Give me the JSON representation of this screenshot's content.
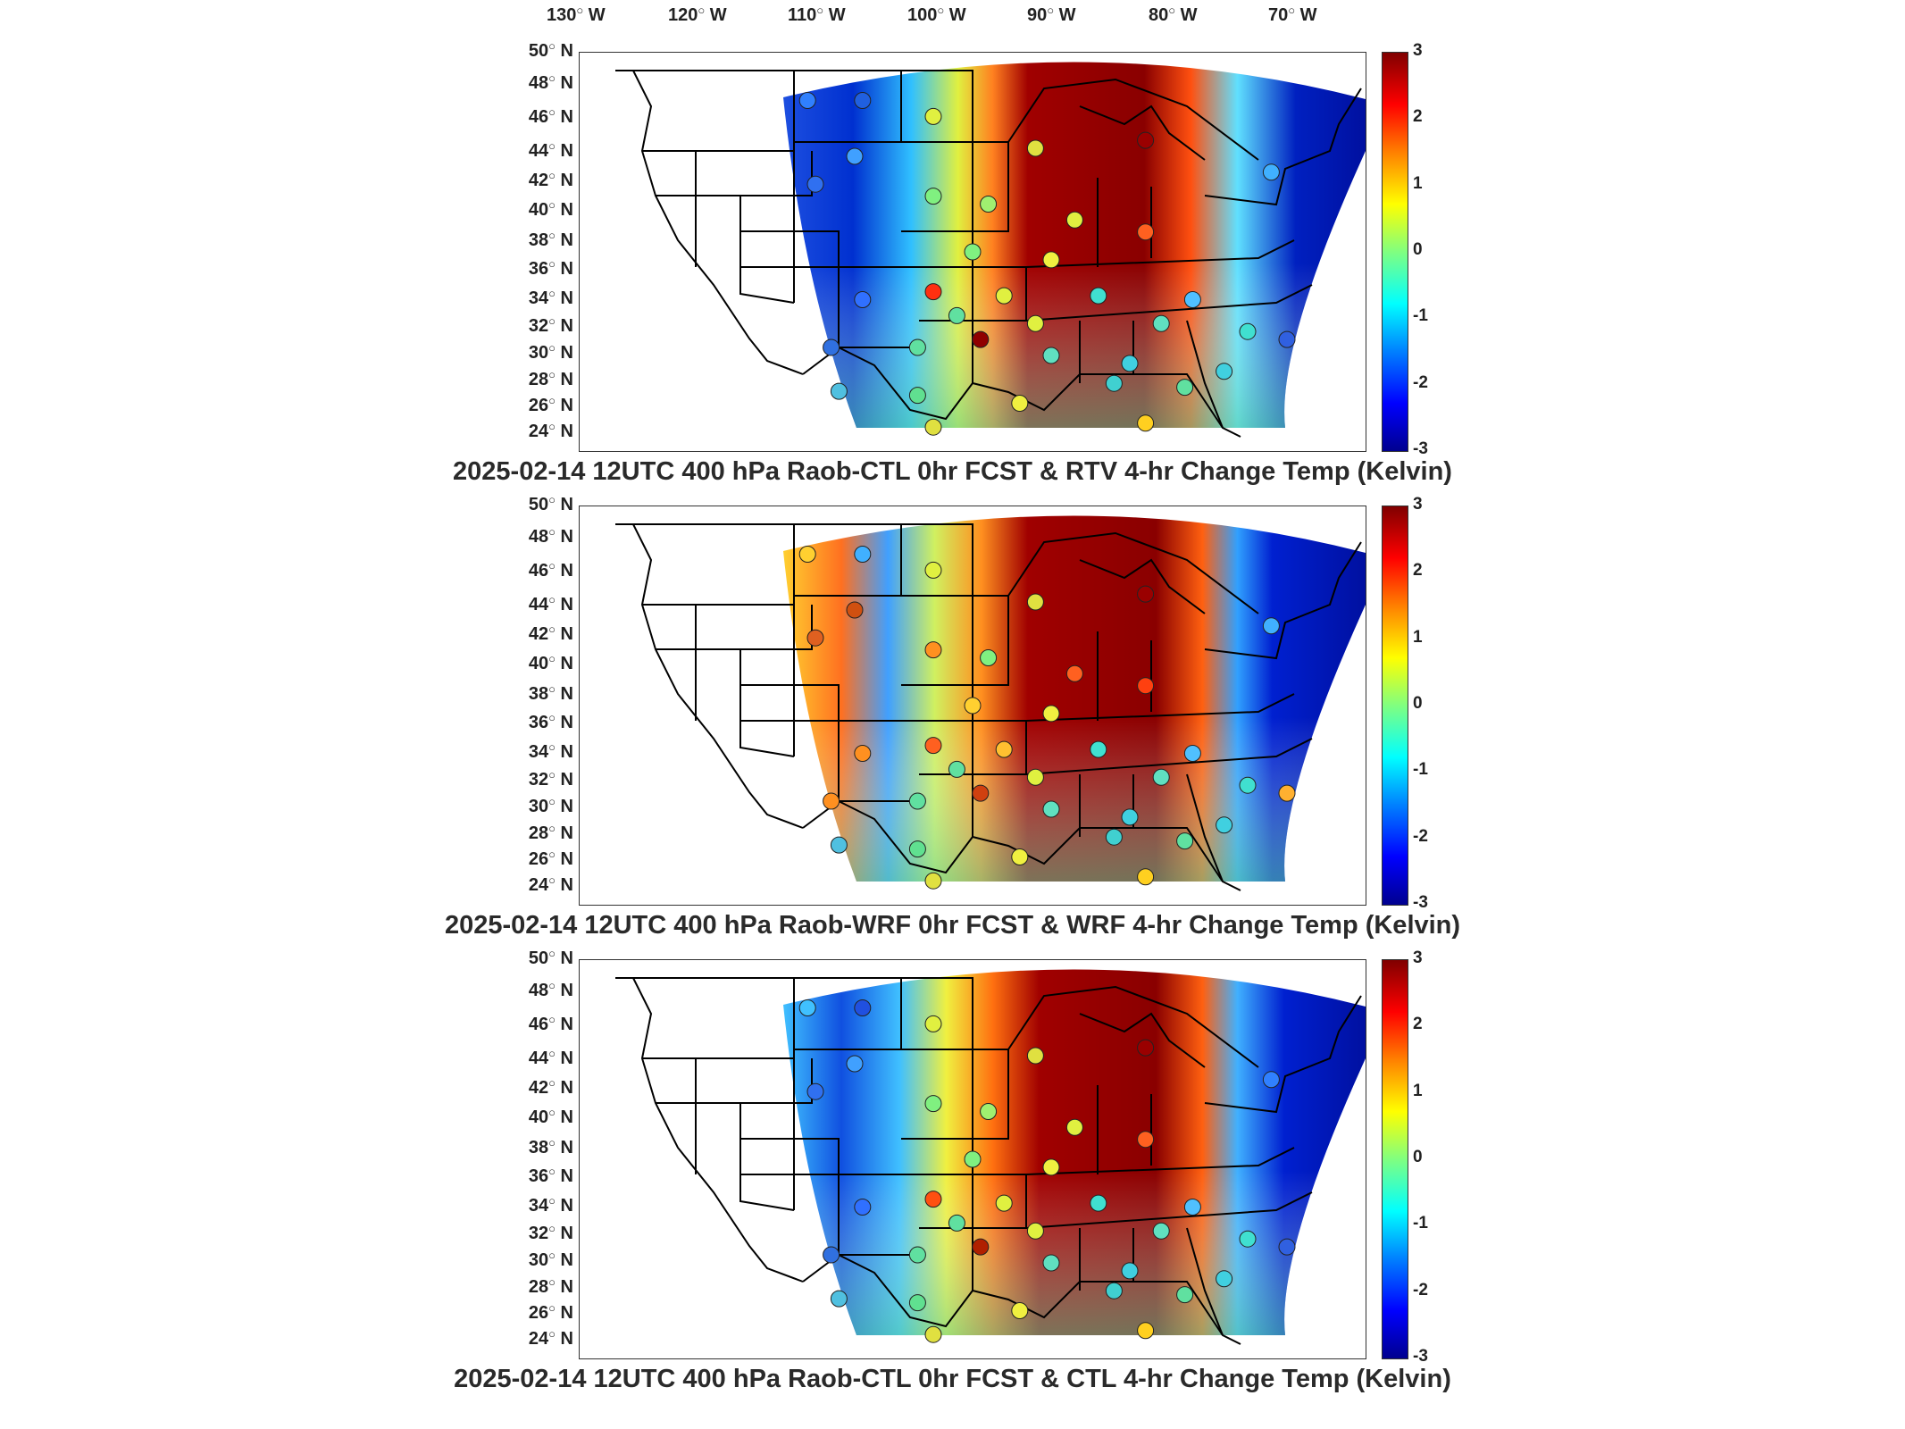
{
  "lon_labels": [
    {
      "num": "130",
      "hemi": "W"
    },
    {
      "num": "120",
      "hemi": "W"
    },
    {
      "num": "110",
      "hemi": "W"
    },
    {
      "num": "100",
      "hemi": "W"
    },
    {
      "num": "90",
      "hemi": "W"
    },
    {
      "num": "80",
      "hemi": "W"
    },
    {
      "num": "70",
      "hemi": "W"
    }
  ],
  "lat_labels": [
    {
      "num": "50",
      "hemi": "N"
    },
    {
      "num": "48",
      "hemi": "N"
    },
    {
      "num": "46",
      "hemi": "N"
    },
    {
      "num": "44",
      "hemi": "N"
    },
    {
      "num": "42",
      "hemi": "N"
    },
    {
      "num": "40",
      "hemi": "N"
    },
    {
      "num": "38",
      "hemi": "N"
    },
    {
      "num": "36",
      "hemi": "N"
    },
    {
      "num": "34",
      "hemi": "N"
    },
    {
      "num": "32",
      "hemi": "N"
    },
    {
      "num": "30",
      "hemi": "N"
    },
    {
      "num": "28",
      "hemi": "N"
    },
    {
      "num": "26",
      "hemi": "N"
    },
    {
      "num": "24",
      "hemi": "N"
    }
  ],
  "colorbar": {
    "min": -3,
    "max": 3,
    "ticks": [
      "3",
      "2",
      "1",
      "0",
      "-1",
      "-2",
      "-3"
    ]
  },
  "panels": [
    {
      "title": "2025-02-14 12UTC 400 hPa Raob-CTL 0hr FCST & RTV 4-hr Change Temp (Kelvin)"
    },
    {
      "title": "2025-02-14 12UTC 400 hPa Raob-WRF 0hr FCST & WRF 4-hr Change Temp (Kelvin)"
    },
    {
      "title": "2025-02-14 12UTC 400 hPa Raob-CTL 0hr FCST & CTL 4-hr Change Temp (Kelvin)"
    }
  ],
  "colors": {
    "warm_max": "#800000",
    "cold_max": "#00008f",
    "neutral": "#80ff80"
  }
}
